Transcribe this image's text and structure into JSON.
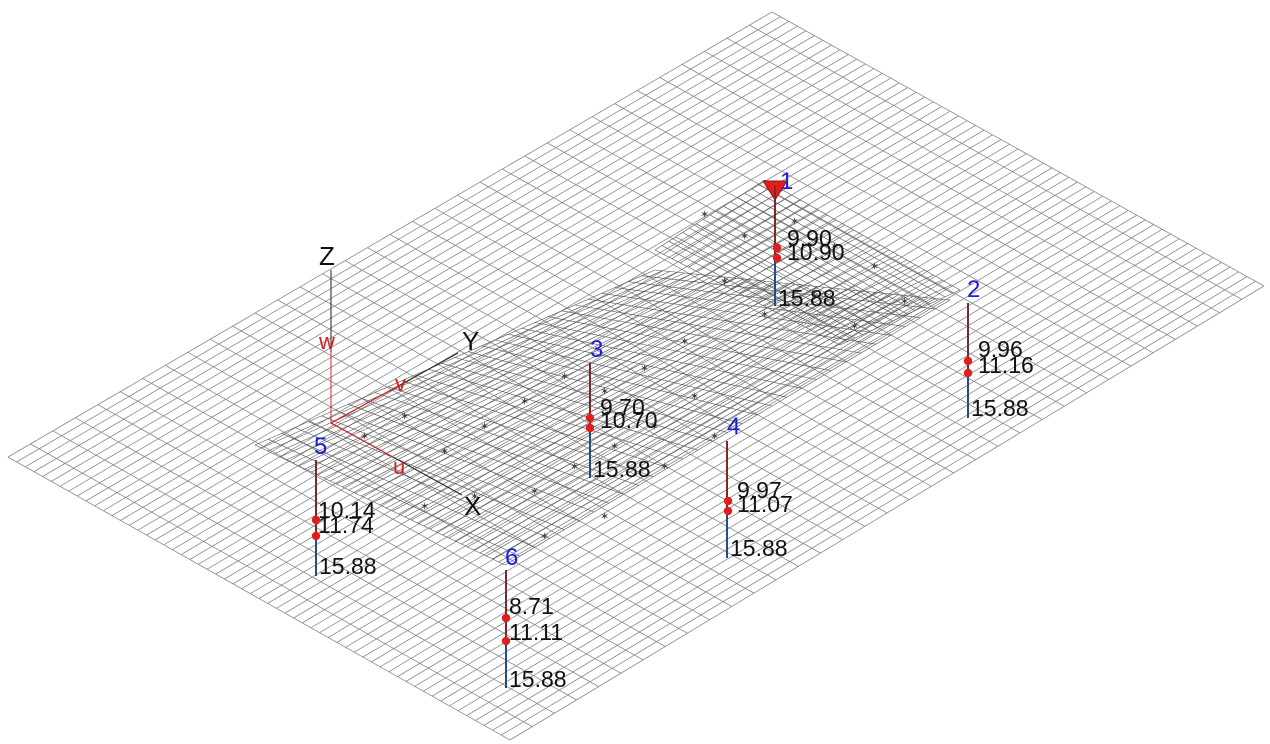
{
  "view": {
    "global_axes": {
      "z": "Z",
      "y": "Y",
      "x": "X"
    },
    "local_axes": {
      "w": "w",
      "v": "v",
      "u": "u"
    },
    "colors": {
      "mesh": "#8a8a8a",
      "slab": "#555555",
      "pile_upper": "#7a2a2a",
      "pile_lower": "#1f4e8c",
      "marker": "#e01e1e",
      "node_label": "#1c1ce0",
      "local_axis": "#dd1c1c",
      "load_arrow": "#e01e1e"
    }
  },
  "piles": [
    {
      "id": "1",
      "levels": [
        "9.90",
        "10.90",
        "15.88"
      ],
      "load_marker": true
    },
    {
      "id": "2",
      "levels": [
        "9.96",
        "11.16",
        "15.88"
      ],
      "load_marker": false
    },
    {
      "id": "3",
      "levels": [
        "9.70",
        "10.70",
        "15.88"
      ],
      "load_marker": false
    },
    {
      "id": "4",
      "levels": [
        "9.97",
        "11.07",
        "15.88"
      ],
      "load_marker": false
    },
    {
      "id": "5",
      "levels": [
        "10.14",
        "11.74",
        "15.88"
      ],
      "load_marker": false
    },
    {
      "id": "6",
      "levels": [
        "8.71",
        "11.11",
        "15.88"
      ],
      "load_marker": false
    }
  ]
}
